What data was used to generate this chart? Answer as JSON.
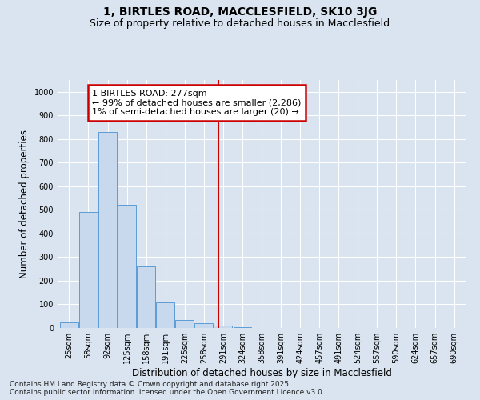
{
  "title": "1, BIRTLES ROAD, MACCLESFIELD, SK10 3JG",
  "subtitle": "Size of property relative to detached houses in Macclesfield",
  "xlabel": "Distribution of detached houses by size in Macclesfield",
  "ylabel": "Number of detached properties",
  "categories": [
    "25sqm",
    "58sqm",
    "92sqm",
    "125sqm",
    "158sqm",
    "191sqm",
    "225sqm",
    "258sqm",
    "291sqm",
    "324sqm",
    "358sqm",
    "391sqm",
    "424sqm",
    "457sqm",
    "491sqm",
    "524sqm",
    "557sqm",
    "590sqm",
    "624sqm",
    "657sqm",
    "690sqm"
  ],
  "values": [
    25,
    490,
    830,
    520,
    260,
    110,
    35,
    20,
    10,
    5,
    0,
    0,
    0,
    0,
    0,
    0,
    0,
    0,
    0,
    0,
    0
  ],
  "bar_color": "#c8d9ee",
  "bar_edge_color": "#5b9bd5",
  "vline_x_index": 8,
  "vline_color": "#cc0000",
  "annotation_line1": "1 BIRTLES ROAD: 277sqm",
  "annotation_line2": "← 99% of detached houses are smaller (2,286)",
  "annotation_line3": "1% of semi-detached houses are larger (20) →",
  "annotation_box_color": "#cc0000",
  "annotation_facecolor": "white",
  "ylim": [
    0,
    1050
  ],
  "yticks": [
    0,
    100,
    200,
    300,
    400,
    500,
    600,
    700,
    800,
    900,
    1000
  ],
  "bg_color": "#d9e4f0",
  "plot_bg_color": "#d9e4f0",
  "footer_line1": "Contains HM Land Registry data © Crown copyright and database right 2025.",
  "footer_line2": "Contains public sector information licensed under the Open Government Licence v3.0.",
  "title_fontsize": 10,
  "subtitle_fontsize": 9,
  "axis_label_fontsize": 8.5,
  "tick_fontsize": 7,
  "annotation_fontsize": 8,
  "footer_fontsize": 6.5
}
